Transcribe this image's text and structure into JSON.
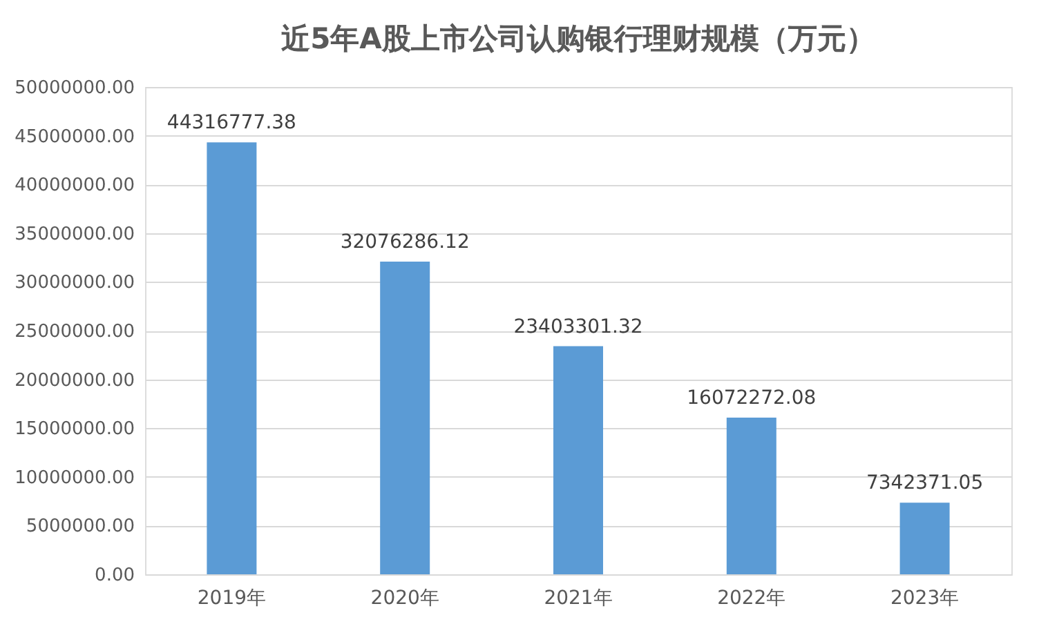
{
  "chart_data": {
    "type": "bar",
    "title": "近5年A股上市公司认购银行理财规模（万元）",
    "categories": [
      "2019年",
      "2020年",
      "2021年",
      "2022年",
      "2023年"
    ],
    "values": [
      44316777.38,
      32076286.12,
      23403301.32,
      16072272.08,
      7342371.05
    ],
    "color": "#5b9bd5",
    "ylim": [
      0,
      50000000
    ],
    "yticks": [
      {
        "value": 0,
        "label": "0.00"
      },
      {
        "value": 5000000,
        "label": "5000000.00"
      },
      {
        "value": 10000000,
        "label": "10000000.00"
      },
      {
        "value": 15000000,
        "label": "15000000.00"
      },
      {
        "value": 20000000,
        "label": "20000000.00"
      },
      {
        "value": 25000000,
        "label": "25000000.00"
      },
      {
        "value": 30000000,
        "label": "30000000.00"
      },
      {
        "value": 35000000,
        "label": "35000000.00"
      },
      {
        "value": 40000000,
        "label": "40000000.00"
      },
      {
        "value": 45000000,
        "label": "45000000.00"
      },
      {
        "value": 50000000,
        "label": "50000000.00"
      }
    ],
    "grid": "y",
    "data_labels": true
  }
}
